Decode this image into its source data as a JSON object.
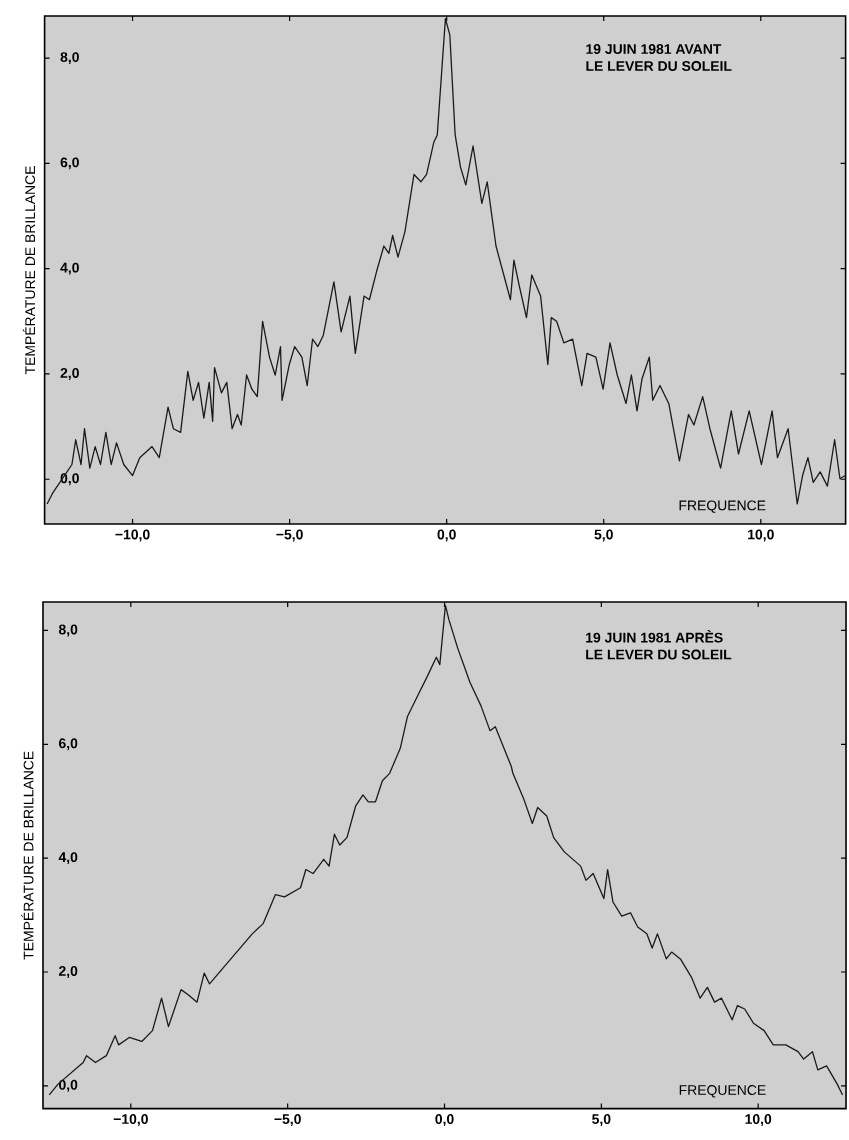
{
  "chart_data": [
    {
      "type": "line",
      "ylabel": "TEMPÉRATURE DE BRILLANCE",
      "xlabel": "FREQUENCE",
      "annotations": [
        "19 JUIN 1981 AVANT",
        "LE LEVER DU SOLEIL"
      ],
      "color": "#1a1a1a",
      "xlim": [
        -12.8,
        12.7
      ],
      "ylim": [
        -0.85,
        8.8
      ],
      "xticks": [
        {
          "value": -10,
          "label": "−10,0"
        },
        {
          "value": -5,
          "label": "−5,0"
        },
        {
          "value": 0,
          "label": "0,0"
        },
        {
          "value": 5,
          "label": "5,0"
        },
        {
          "value": 10,
          "label": "10,0"
        }
      ],
      "yticks": [
        {
          "value": 0,
          "label": "0,0"
        },
        {
          "value": 2,
          "label": "2,0"
        },
        {
          "value": 4,
          "label": "4,0"
        },
        {
          "value": 6,
          "label": "6,0"
        },
        {
          "value": 8,
          "label": "8,0"
        }
      ],
      "x": [
        -12.72,
        -12.55,
        -11.93,
        -11.81,
        -11.64,
        -11.53,
        -11.36,
        -11.19,
        -11.02,
        -10.85,
        -10.68,
        -10.51,
        -10.28,
        -10.0,
        -9.77,
        -9.38,
        -9.15,
        -8.87,
        -8.7,
        -8.47,
        -8.24,
        -8.07,
        -7.9,
        -7.73,
        -7.56,
        -7.45,
        -7.39,
        -7.17,
        -7.0,
        -6.83,
        -6.66,
        -6.54,
        -6.37,
        -6.2,
        -6.03,
        -5.86,
        -5.64,
        -5.46,
        -5.29,
        -5.24,
        -5.01,
        -4.84,
        -4.61,
        -4.44,
        -4.27,
        -4.1,
        -3.93,
        -3.59,
        -3.36,
        -3.08,
        -2.91,
        -2.63,
        -2.46,
        -2.23,
        -2.0,
        -1.84,
        -1.72,
        -1.55,
        -1.33,
        -1.04,
        -0.82,
        -0.64,
        -0.41,
        -0.3,
        -0.04,
        0.1,
        0.27,
        0.44,
        0.61,
        0.84,
        1.12,
        1.29,
        1.57,
        2.03,
        2.14,
        2.31,
        2.54,
        2.71,
        2.99,
        3.22,
        3.33,
        3.5,
        3.73,
        4.01,
        4.3,
        4.47,
        4.75,
        4.98,
        5.2,
        5.43,
        5.71,
        5.88,
        6.06,
        6.22,
        6.45,
        6.56,
        6.79,
        7.07,
        7.41,
        7.7,
        7.87,
        8.15,
        8.38,
        8.72,
        9.06,
        9.29,
        9.63,
        10.02,
        10.36,
        10.53,
        10.87,
        11.16,
        11.33,
        11.5,
        11.67,
        11.89,
        12.12,
        12.35,
        12.52,
        12.69
      ],
      "values": [
        -0.47,
        -0.27,
        0.28,
        0.75,
        0.28,
        0.96,
        0.21,
        0.62,
        0.28,
        0.89,
        0.28,
        0.69,
        0.28,
        0.07,
        0.41,
        0.62,
        0.41,
        1.37,
        0.96,
        0.89,
        2.05,
        1.5,
        1.84,
        1.16,
        1.84,
        1.1,
        2.12,
        1.64,
        1.84,
        0.96,
        1.23,
        1.03,
        1.98,
        1.71,
        1.57,
        3.0,
        2.32,
        1.98,
        2.52,
        1.5,
        2.18,
        2.52,
        2.32,
        1.78,
        2.66,
        2.52,
        2.73,
        3.75,
        2.8,
        3.48,
        2.39,
        3.48,
        3.41,
        3.95,
        4.43,
        4.29,
        4.63,
        4.22,
        4.7,
        5.79,
        5.65,
        5.79,
        6.4,
        6.54,
        8.75,
        8.44,
        6.54,
        5.93,
        5.59,
        6.33,
        5.24,
        5.65,
        4.43,
        3.41,
        4.16,
        3.68,
        3.07,
        3.88,
        3.48,
        2.18,
        3.07,
        3.0,
        2.59,
        2.66,
        1.78,
        2.39,
        2.32,
        1.71,
        2.59,
        1.98,
        1.44,
        1.98,
        1.3,
        1.91,
        2.32,
        1.5,
        1.78,
        1.44,
        0.35,
        1.23,
        1.03,
        1.57,
        0.96,
        0.21,
        1.3,
        0.48,
        1.3,
        0.28,
        1.3,
        0.41,
        0.96,
        -0.47,
        0.07,
        0.41,
        -0.06,
        0.14,
        -0.13,
        0.75,
        0.01,
        0.07
      ]
    },
    {
      "type": "line",
      "ylabel": "TEMPÉRATURE DE BRILLANCE",
      "xlabel": "FREQUENCE",
      "annotations": [
        "19 JUIN 1981 APRÈS",
        "LE LEVER DU SOLEIL"
      ],
      "color": "#1a1a1a",
      "xlim": [
        -12.8,
        12.8
      ],
      "ylim": [
        -0.4,
        8.5
      ],
      "xticks": [
        {
          "value": -10,
          "label": "−10,0"
        },
        {
          "value": -5,
          "label": "−5,0"
        },
        {
          "value": 0,
          "label": "0,0"
        },
        {
          "value": 5,
          "label": "5,0"
        },
        {
          "value": 10,
          "label": "10,0"
        }
      ],
      "yticks": [
        {
          "value": 0,
          "label": "0,0"
        },
        {
          "value": 2,
          "label": "2,0"
        },
        {
          "value": 4,
          "label": "4,0"
        },
        {
          "value": 6,
          "label": "6,0"
        },
        {
          "value": 8,
          "label": "8,0"
        }
      ],
      "x": [
        -12.6,
        -12.32,
        -11.52,
        -11.41,
        -11.13,
        -10.78,
        -10.5,
        -10.39,
        -10.05,
        -9.65,
        -9.31,
        -9.02,
        -8.8,
        -8.4,
        -8.17,
        -7.89,
        -7.66,
        -7.49,
        -6.92,
        -6.13,
        -5.78,
        -5.39,
        -5.1,
        -4.59,
        -4.42,
        -4.19,
        -3.85,
        -3.68,
        -3.51,
        -3.34,
        -3.11,
        -2.83,
        -2.6,
        -2.43,
        -2.2,
        -1.98,
        -1.75,
        -1.41,
        -1.18,
        -0.84,
        -0.56,
        -0.26,
        -0.15,
        0.03,
        0.14,
        0.42,
        0.81,
        1.16,
        1.45,
        1.62,
        2.13,
        2.18,
        2.52,
        2.8,
        2.97,
        3.26,
        3.48,
        3.82,
        4.34,
        4.51,
        4.74,
        5.08,
        5.2,
        5.37,
        5.65,
        5.93,
        6.16,
        6.45,
        6.62,
        6.79,
        7.07,
        7.24,
        7.52,
        7.87,
        8.15,
        8.38,
        8.61,
        8.83,
        9.17,
        9.34,
        9.57,
        9.85,
        10.19,
        10.48,
        10.88,
        11.27,
        11.45,
        11.73,
        11.9,
        12.18,
        12.52,
        12.69
      ],
      "values": [
        -0.16,
        0.03,
        0.41,
        0.53,
        0.41,
        0.53,
        0.88,
        0.72,
        0.85,
        0.78,
        0.97,
        1.54,
        1.04,
        1.69,
        1.6,
        1.47,
        1.98,
        1.79,
        2.16,
        2.67,
        2.85,
        3.36,
        3.32,
        3.48,
        3.8,
        3.73,
        3.98,
        3.86,
        4.42,
        4.23,
        4.36,
        4.92,
        5.11,
        4.99,
        4.99,
        5.36,
        5.49,
        5.93,
        6.49,
        6.87,
        7.18,
        7.53,
        7.4,
        8.44,
        8.19,
        7.69,
        7.09,
        6.68,
        6.24,
        6.31,
        5.61,
        5.49,
        5.05,
        4.61,
        4.89,
        4.74,
        4.36,
        4.11,
        3.86,
        3.61,
        3.73,
        3.29,
        3.8,
        3.23,
        2.98,
        3.04,
        2.79,
        2.67,
        2.42,
        2.67,
        2.23,
        2.35,
        2.23,
        1.91,
        1.54,
        1.73,
        1.47,
        1.54,
        1.16,
        1.41,
        1.35,
        1.1,
        0.97,
        0.72,
        0.72,
        0.6,
        0.47,
        0.6,
        0.28,
        0.35,
        0.03,
        -0.16
      ]
    }
  ]
}
